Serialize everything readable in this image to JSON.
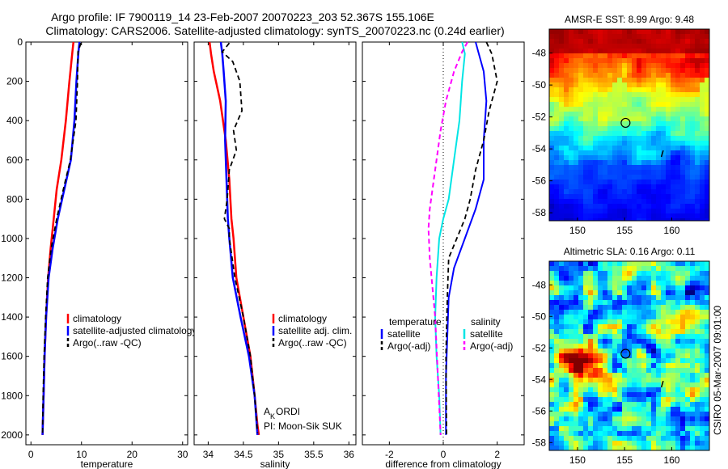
{
  "header": {
    "line1": "Argo profile: IF 7900119_14 23-Feb-2007 20070223_203 52.367S 155.106E",
    "line2": "Climatology: CARS2006. Satellite-adjusted climatology: synTS_20070223.nc (0.24d earlier)"
  },
  "side_text": "CSIRO 05-Mar-2007 09:01:00",
  "colors": {
    "climatology": "#ff0000",
    "satellite": "#0000ff",
    "argo": "#000000",
    "satellite_salinity_diff": "#00e5e5",
    "argo_salinity_diff": "#ff00ff"
  },
  "chart_data": [
    {
      "type": "line",
      "id": "temperature",
      "xlabel": "temperature",
      "xlim": [
        -1,
        31
      ],
      "ylim": [
        0,
        2050
      ],
      "x_ticks": [
        0,
        10,
        20,
        30
      ],
      "y_ticks": [
        0,
        200,
        400,
        600,
        800,
        1000,
        1200,
        1400,
        1600,
        1800,
        2000
      ],
      "legend": [
        "climatology",
        "satellite-adjusted climatology",
        "Argo(..raw -QC)"
      ],
      "series": [
        {
          "name": "climatology",
          "color": "#ff0000",
          "width": 2.5,
          "dash": "",
          "x": [
            8.4,
            8.2,
            7.6,
            6.9,
            6.0,
            5.1,
            4.5,
            3.9,
            3.4,
            3.0,
            2.7,
            2.5,
            2.35,
            2.3
          ],
          "y": [
            0,
            50,
            200,
            400,
            600,
            750,
            900,
            1050,
            1200,
            1400,
            1600,
            1800,
            1950,
            2000
          ]
        },
        {
          "name": "satellite-adjusted climatology",
          "color": "#0000ff",
          "width": 2.5,
          "dash": "",
          "x": [
            9.6,
            9.4,
            9.0,
            8.6,
            7.9,
            6.6,
            5.3,
            4.3,
            3.5,
            3.0,
            2.7,
            2.5,
            2.35,
            2.3
          ],
          "y": [
            0,
            50,
            200,
            400,
            600,
            750,
            900,
            1050,
            1200,
            1400,
            1600,
            1800,
            1950,
            2000
          ]
        },
        {
          "name": "Argo(..raw -QC)",
          "color": "#000000",
          "width": 1.8,
          "dash": "6,4",
          "x": [
            9.9,
            9.3,
            9.2,
            8.9,
            7.8,
            6.4,
            5.1,
            4.0,
            3.3,
            2.9,
            2.6,
            2.4,
            2.3
          ],
          "y": [
            5,
            50,
            200,
            400,
            600,
            750,
            900,
            1050,
            1200,
            1400,
            1600,
            1800,
            1990
          ]
        }
      ]
    },
    {
      "type": "line",
      "id": "salinity",
      "xlabel": "salinity",
      "xlim": [
        33.8,
        36.1
      ],
      "ylim": [
        0,
        2050
      ],
      "x_ticks": [
        34,
        34.5,
        35,
        35.5,
        36
      ],
      "y_ticks": [
        0,
        200,
        400,
        600,
        800,
        1000,
        1200,
        1400,
        1600,
        1800,
        2000
      ],
      "legend": [
        "climatology",
        "satellite adj. clim.",
        "Argo(..raw -QC)"
      ],
      "annotations": [
        "A",
        "K",
        "ORDI",
        "PI: Moon-Sik SUK"
      ],
      "series": [
        {
          "name": "climatology",
          "color": "#ff0000",
          "width": 2.5,
          "dash": "",
          "x": [
            34.02,
            34.04,
            34.08,
            34.17,
            34.25,
            34.3,
            34.33,
            34.36,
            34.4,
            34.5,
            34.6,
            34.66,
            34.7,
            34.72
          ],
          "y": [
            0,
            60,
            150,
            300,
            500,
            700,
            900,
            1000,
            1200,
            1400,
            1600,
            1800,
            1950,
            2000
          ]
        },
        {
          "name": "satellite adj. clim.",
          "color": "#0000ff",
          "width": 2.5,
          "dash": "",
          "x": [
            34.18,
            34.2,
            34.22,
            34.25,
            34.24,
            34.26,
            34.28,
            34.3,
            34.35,
            34.46,
            34.58,
            34.66,
            34.7
          ],
          "y": [
            0,
            60,
            150,
            300,
            500,
            700,
            900,
            1000,
            1200,
            1400,
            1600,
            1800,
            2000
          ]
        },
        {
          "name": "Argo(..raw -QC)",
          "color": "#000000",
          "width": 1.8,
          "dash": "6,4",
          "x": [
            34.3,
            34.2,
            34.35,
            34.45,
            34.48,
            34.36,
            34.4,
            34.3,
            34.27,
            34.23,
            34.3,
            34.3,
            34.38,
            34.5,
            34.6,
            34.66,
            34.7
          ],
          "y": [
            5,
            50,
            100,
            200,
            350,
            450,
            550,
            650,
            800,
            900,
            950,
            1000,
            1200,
            1400,
            1600,
            1800,
            1990
          ]
        }
      ]
    },
    {
      "type": "line",
      "id": "difference",
      "xlabel": "difference from climatology",
      "xlim": [
        -3,
        3
      ],
      "ylim": [
        0,
        2050
      ],
      "x_ticks": [
        -2,
        0,
        2
      ],
      "y_ticks": [
        0,
        200,
        400,
        600,
        800,
        1000,
        1200,
        1400,
        1600,
        1800,
        2000
      ],
      "legend_titles": [
        "temperature",
        "salinity"
      ],
      "legend_left": [
        "satellite",
        "Argo(-adj)"
      ],
      "legend_right": [
        "satellite",
        "Argo(-adj)"
      ],
      "series": [
        {
          "name": "temperature satellite",
          "color": "#0000ff",
          "width": 2,
          "dash": "",
          "x": [
            1.2,
            1.3,
            1.5,
            1.6,
            1.5,
            1.5,
            1.2,
            0.8,
            0.4,
            0.2,
            0.15,
            0.1,
            0.1
          ],
          "y": [
            0,
            50,
            150,
            300,
            500,
            700,
            850,
            1000,
            1150,
            1300,
            1500,
            1700,
            2000
          ]
        },
        {
          "name": "temperature Argo(-adj)",
          "color": "#000000",
          "width": 1.8,
          "dash": "6,4",
          "x": [
            1.6,
            1.8,
            2.0,
            1.7,
            1.5,
            1.2,
            1.0,
            0.8,
            0.5,
            0.2,
            0.15,
            0.1,
            0.12
          ],
          "y": [
            0,
            60,
            200,
            350,
            500,
            650,
            800,
            900,
            1000,
            1100,
            1300,
            1600,
            2000
          ]
        },
        {
          "name": "salinity satellite",
          "color": "#00e5e5",
          "width": 2,
          "dash": "",
          "x": [
            0.7,
            0.8,
            0.7,
            0.6,
            0.4,
            0.2,
            0.0,
            -0.15,
            -0.25,
            -0.3,
            -0.25,
            -0.15,
            -0.1
          ],
          "y": [
            0,
            60,
            200,
            400,
            600,
            800,
            900,
            1000,
            1200,
            1400,
            1600,
            1800,
            2000
          ]
        },
        {
          "name": "salinity Argo(-adj)",
          "color": "#ff00ff",
          "width": 2,
          "dash": "6,4",
          "x": [
            0.9,
            0.7,
            0.4,
            0.1,
            -0.1,
            -0.3,
            -0.5,
            -0.55,
            -0.5,
            -0.3,
            -0.2,
            -0.1
          ],
          "y": [
            0,
            50,
            150,
            300,
            450,
            650,
            850,
            950,
            1100,
            1400,
            1700,
            2000
          ]
        }
      ]
    },
    {
      "type": "heatmap",
      "id": "sst_map",
      "title": "AMSR-E SST: 8.99 Argo: 9.48",
      "x_ticks": [
        150,
        155,
        160
      ],
      "y_ticks": [
        -48,
        -50,
        -52,
        -54,
        -56,
        -58
      ],
      "xlim": [
        147,
        164
      ],
      "ylim": [
        -58.5,
        -46.5
      ],
      "marker": {
        "lon": 155.1,
        "lat": -52.37
      }
    },
    {
      "type": "heatmap",
      "id": "sla_map",
      "title": "Altimetric SLA: 0.16 Argo: 0.11",
      "x_ticks": [
        150,
        155,
        160
      ],
      "y_ticks": [
        -48,
        -50,
        -52,
        -54,
        -56,
        -58
      ],
      "xlim": [
        147,
        164
      ],
      "ylim": [
        -58.5,
        -46.5
      ],
      "marker": {
        "lon": 155.1,
        "lat": -52.37
      }
    }
  ]
}
